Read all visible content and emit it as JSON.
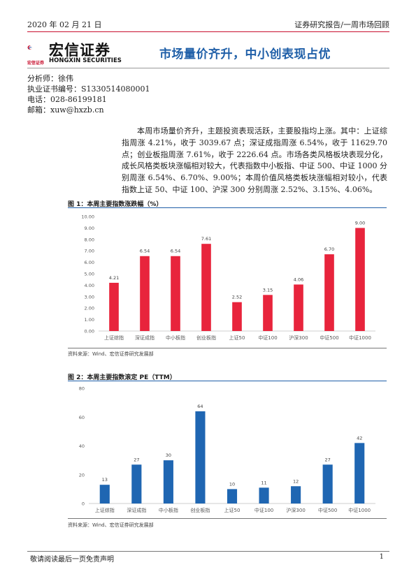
{
  "header": {
    "date": "2020 年 02 月 21 日",
    "category": "证券研究报告/一周市场回顾",
    "colors": {
      "accent": "#c8102e",
      "title": "#1f5fa8"
    }
  },
  "logo": {
    "name_cn": "宏信证券",
    "name_en": "HONGXIN SECURITIES",
    "small": "宏信证券"
  },
  "title": "市场量价齐升，中小创表现占优",
  "analyst": {
    "name": "分析师：徐伟",
    "license": "执业证书编号：S1330514080001",
    "phone": "电话：028-86199181",
    "email": "邮箱：xuw@hxzb.cn"
  },
  "body": "本周市场量价齐升，主题投资表现活跃，主要股指均上涨。其中：上证综指周涨 4.21%，收于 3039.67 点；深证成指周涨 6.54%，收于 11629.70 点；创业板指周涨 7.61%，收于 2226.64 点。市场各类风格板块表现分化，成长风格类板块涨幅相对较大，代表指数中小板指、中证 500、中证 1000 分别周涨 6.54%、6.70%、9.00%；本周价值风格类板块涨幅相对较小，代表指数上证 50、中证 100、沪深 300 分别周涨 2.52%、3.15%、4.06%。",
  "figure1": {
    "title": "图 1：本周主要指数涨跌幅（%）",
    "source": "资料来源：Wind、宏信证券研究发展部"
  },
  "figure2": {
    "title": "图 2：本周主要指数滚定 PE（TTM）",
    "source": "资料来源：Wind、宏信证券研究发展部"
  },
  "chart_data": [
    {
      "type": "bar",
      "categories": [
        "上证综指",
        "深证成指",
        "中小板指",
        "创业板指",
        "上证50",
        "中证100",
        "沪深300",
        "中证500",
        "中证1000"
      ],
      "values": [
        4.21,
        6.54,
        6.54,
        7.61,
        2.52,
        3.15,
        4.06,
        6.7,
        9.0
      ],
      "value_labels": [
        "4.21",
        "6.54",
        "6.54",
        "7.61",
        "2.52",
        "3.15",
        "4.06",
        "6.70",
        "9.00"
      ],
      "yticks": [
        "0.00",
        "1.00",
        "2.00",
        "3.00",
        "4.00",
        "5.00",
        "6.00",
        "7.00",
        "8.00",
        "9.00",
        "10.00"
      ],
      "ylim": [
        0,
        10
      ],
      "color": "#e8243c",
      "grid": false
    },
    {
      "type": "bar",
      "categories": [
        "上证综指",
        "深证成指",
        "中小板指",
        "创业板指",
        "上证50",
        "中证100",
        "沪深300",
        "中证500",
        "中证1000"
      ],
      "values": [
        13,
        27,
        30,
        64,
        10,
        11,
        12,
        27,
        42
      ],
      "value_labels": [
        "13",
        "27",
        "30",
        "64",
        "10",
        "11",
        "12",
        "27",
        "42"
      ],
      "yticks": [
        "0",
        "20",
        "40",
        "60",
        "80"
      ],
      "ylim": [
        0,
        80
      ],
      "color": "#1f66b2",
      "grid": false
    }
  ],
  "footer": {
    "disclaimer": "敬请阅读最后一页免责声明",
    "page": "1"
  }
}
